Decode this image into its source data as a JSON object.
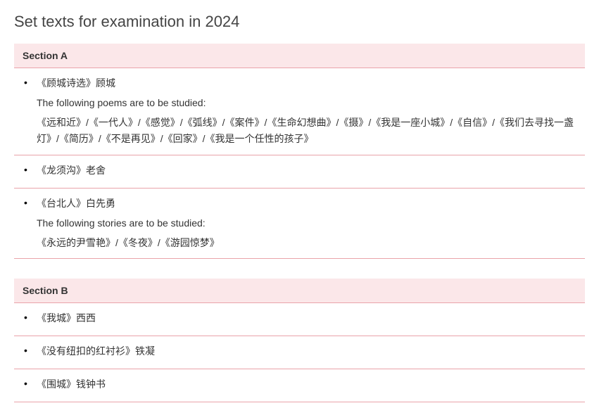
{
  "page": {
    "title": "Set texts for examination in 2024"
  },
  "colors": {
    "header_bg": "#fbe7e9",
    "border": "#e9a3aa",
    "text": "#333333",
    "background": "#ffffff"
  },
  "typography": {
    "title_fontsize": 22,
    "body_fontsize": 14,
    "header_weight": "bold",
    "font_family": "Arial"
  },
  "sections": {
    "a": {
      "header": "Section A",
      "items": {
        "0": {
          "title": "《顾城诗选》顾城",
          "note": "The following poems are to be studied:",
          "works": "《远和近》/《一代人》/《感觉》/《弧线》/《案件》/《生命幻想曲》/《摄》/《我是一座小城》/《自信》/《我们去寻找一盏灯》/《简历》/《不是再见》/《回家》/《我是一个任性的孩子》"
        },
        "1": {
          "title": "《龙须沟》老舍"
        },
        "2": {
          "title": "《台北人》白先勇",
          "note": "The following stories are to be studied:",
          "works": "《永远的尹雪艳》/《冬夜》/《游园惊梦》"
        }
      }
    },
    "b": {
      "header": "Section B",
      "items": {
        "0": {
          "title": "《我城》西西"
        },
        "1": {
          "title": "《没有纽扣的红衬衫》铁凝"
        },
        "2": {
          "title": "《围城》钱钟书"
        }
      }
    }
  }
}
